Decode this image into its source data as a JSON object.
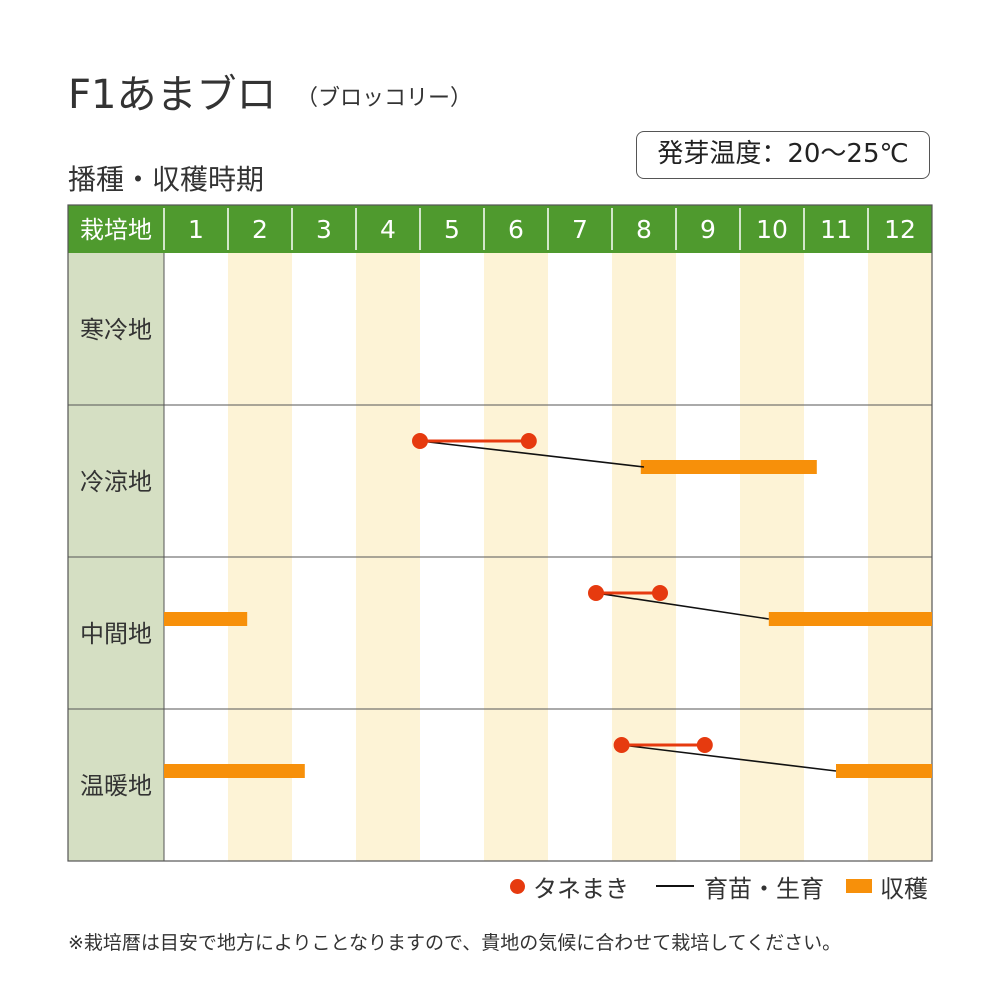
{
  "title": "F1あまブロ",
  "subtitle": "（ブロッコリー）",
  "germination_temp": "発芽温度：20～25℃",
  "section_label": "播種・収穫時期",
  "legend": {
    "sowing": "タネまき",
    "growing": "育苗・生育",
    "harvest": "収穫"
  },
  "note": "※栽培暦は目安で地方によりことなりますので、貴地の気候に合わせて栽培してください。",
  "colors": {
    "header_green": "#4f9a2e",
    "row_label_bg": "#d5dfc3",
    "stripe": "#fdf3d6",
    "sowing": "#e63a0f",
    "harvest": "#f7900a",
    "growing_line": "#111111"
  },
  "chart_data": {
    "type": "gantt",
    "corner_label": "栽培地",
    "months": [
      "1",
      "2",
      "3",
      "4",
      "5",
      "6",
      "7",
      "8",
      "9",
      "10",
      "11",
      "12"
    ],
    "rows": [
      {
        "region": "寒冷地",
        "sowing": null,
        "growing": null,
        "harvest": []
      },
      {
        "region": "冷涼地",
        "sowing": [
          5.0,
          6.7
        ],
        "growing": [
          5.0,
          8.5
        ],
        "harvest": [
          [
            8.45,
            11.2
          ]
        ]
      },
      {
        "region": "中間地",
        "sowing": [
          7.75,
          8.75
        ],
        "growing": [
          7.75,
          10.45
        ],
        "harvest": [
          [
            10.45,
            13.0
          ],
          [
            1.0,
            2.3
          ]
        ]
      },
      {
        "region": "温暖地",
        "sowing": [
          8.15,
          9.45
        ],
        "growing": [
          8.15,
          11.5
        ],
        "harvest": [
          [
            11.5,
            13.0
          ],
          [
            1.0,
            3.2
          ]
        ]
      }
    ]
  }
}
